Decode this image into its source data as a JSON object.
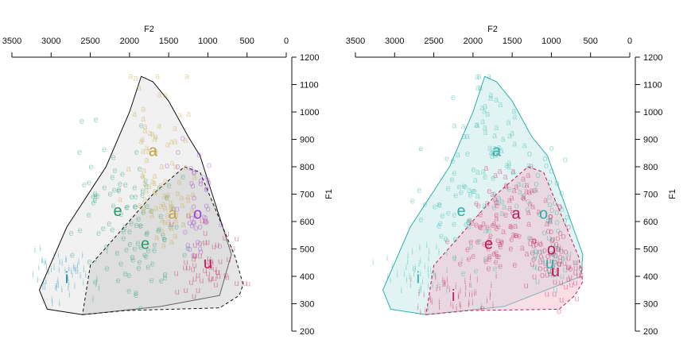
{
  "chart_data": [
    {
      "type": "scatter",
      "title": "",
      "xlabel": "F2",
      "ylabel": "F1",
      "xlim": [
        3500,
        0
      ],
      "ylim": [
        1200,
        200
      ],
      "x_ticks": [
        "3500",
        "3000",
        "2500",
        "2000",
        "1500",
        "1000",
        "500",
        "0"
      ],
      "y_ticks": [
        "200",
        "300",
        "400",
        "500",
        "600",
        "700",
        "800",
        "900",
        "1000",
        "1100",
        "1200"
      ],
      "grid": false,
      "legend": "none",
      "series": [
        {
          "label": "i",
          "color": "#1a8fb5",
          "centroid": [
            2800,
            395
          ],
          "spread": [
            230,
            45
          ],
          "n": 60
        },
        {
          "label": "e",
          "color": "#1f9d6a",
          "centroid": [
            1800,
            520
          ],
          "spread": [
            260,
            90
          ],
          "n": 55
        },
        {
          "label": "e",
          "color": "#1f9d6a",
          "centroid": [
            2150,
            640
          ],
          "spread": [
            330,
            140
          ],
          "n": 55
        },
        {
          "label": "a",
          "color": "#c0a33c",
          "centroid": [
            1450,
            630
          ],
          "spread": [
            170,
            70
          ],
          "n": 35
        },
        {
          "label": "a",
          "color": "#c0a33c",
          "centroid": [
            1700,
            860
          ],
          "spread": [
            230,
            140
          ],
          "n": 55
        },
        {
          "label": "o",
          "color": "#9b3fd0",
          "centroid": [
            1130,
            630
          ],
          "spread": [
            130,
            110
          ],
          "n": 45
        },
        {
          "label": "u",
          "color": "#c01a58",
          "centroid": [
            1000,
            450
          ],
          "spread": [
            200,
            65
          ],
          "n": 55
        }
      ],
      "hull_outer": [
        [
          3150,
          350
        ],
        [
          3050,
          280
        ],
        [
          2600,
          260
        ],
        [
          1600,
          290
        ],
        [
          850,
          330
        ],
        [
          700,
          480
        ],
        [
          1100,
          840
        ],
        [
          1250,
          910
        ],
        [
          1500,
          1040
        ],
        [
          1700,
          1110
        ],
        [
          1850,
          1130
        ],
        [
          2000,
          1000
        ],
        [
          2300,
          800
        ],
        [
          2800,
          580
        ]
      ],
      "hull_inner": [
        [
          2600,
          260
        ],
        [
          2050,
          275
        ],
        [
          850,
          285
        ],
        [
          600,
          330
        ],
        [
          550,
          370
        ],
        [
          650,
          470
        ],
        [
          1100,
          780
        ],
        [
          1300,
          800
        ],
        [
          1700,
          700
        ],
        [
          2500,
          440
        ]
      ],
      "colors": {
        "outer_fill": "#9e9e9e",
        "inner_fill": "#c8c8c8",
        "hull_line": "#111111"
      }
    },
    {
      "type": "scatter",
      "title": "",
      "xlabel": "F2",
      "ylabel": "F1",
      "xlim": [
        3500,
        0
      ],
      "ylim": [
        1200,
        200
      ],
      "x_ticks": [
        "3500",
        "3000",
        "2500",
        "2000",
        "1500",
        "1000",
        "500",
        "0"
      ],
      "y_ticks": [
        "200",
        "300",
        "400",
        "500",
        "600",
        "700",
        "800",
        "900",
        "1000",
        "1100",
        "1200"
      ],
      "grid": false,
      "legend": "none",
      "series": [
        {
          "label": "i",
          "color": "#2ab2a8",
          "centroid": [
            2700,
            395
          ],
          "spread": [
            220,
            50
          ],
          "n": 50
        },
        {
          "label": "i",
          "color": "#c01a58",
          "centroid": [
            2250,
            330
          ],
          "spread": [
            230,
            40
          ],
          "n": 50
        },
        {
          "label": "e",
          "color": "#c01a58",
          "centroid": [
            1800,
            520
          ],
          "spread": [
            240,
            80
          ],
          "n": 55
        },
        {
          "label": "e",
          "color": "#2ab2a8",
          "centroid": [
            2150,
            640
          ],
          "spread": [
            300,
            140
          ],
          "n": 50
        },
        {
          "label": "a",
          "color": "#c01a58",
          "centroid": [
            1450,
            630
          ],
          "spread": [
            200,
            90
          ],
          "n": 45
        },
        {
          "label": "a",
          "color": "#2ab2a8",
          "centroid": [
            1700,
            860
          ],
          "spread": [
            220,
            150
          ],
          "n": 60
        },
        {
          "label": "o",
          "color": "#c01a58",
          "centroid": [
            1000,
            500
          ],
          "spread": [
            160,
            80
          ],
          "n": 35
        },
        {
          "label": "o",
          "color": "#2ab2a8",
          "centroid": [
            1100,
            630
          ],
          "spread": [
            150,
            100
          ],
          "n": 35
        },
        {
          "label": "u",
          "color": "#c01a58",
          "centroid": [
            950,
            420
          ],
          "spread": [
            180,
            50
          ],
          "n": 40
        },
        {
          "label": "u",
          "color": "#2ab2a8",
          "centroid": [
            1020,
            450
          ],
          "spread": [
            150,
            50
          ],
          "n": 30
        }
      ],
      "hull_outer": [
        [
          3150,
          350
        ],
        [
          3050,
          280
        ],
        [
          2600,
          260
        ],
        [
          1600,
          290
        ],
        [
          620,
          400
        ],
        [
          600,
          480
        ],
        [
          1050,
          840
        ],
        [
          1250,
          910
        ],
        [
          1500,
          1040
        ],
        [
          1700,
          1110
        ],
        [
          1850,
          1130
        ],
        [
          2000,
          1000
        ],
        [
          2300,
          800
        ],
        [
          2800,
          580
        ]
      ],
      "hull_inner": [
        [
          2600,
          260
        ],
        [
          2050,
          275
        ],
        [
          900,
          280
        ],
        [
          700,
          330
        ],
        [
          600,
          380
        ],
        [
          650,
          470
        ],
        [
          1100,
          780
        ],
        [
          1300,
          800
        ],
        [
          1700,
          700
        ],
        [
          2500,
          440
        ]
      ],
      "colors": {
        "outer_fill": "#2ab2a8",
        "inner_fill": "#f3b5c8",
        "outer_line": "#2ab2a8",
        "inner_line": "#c01a58"
      }
    }
  ]
}
